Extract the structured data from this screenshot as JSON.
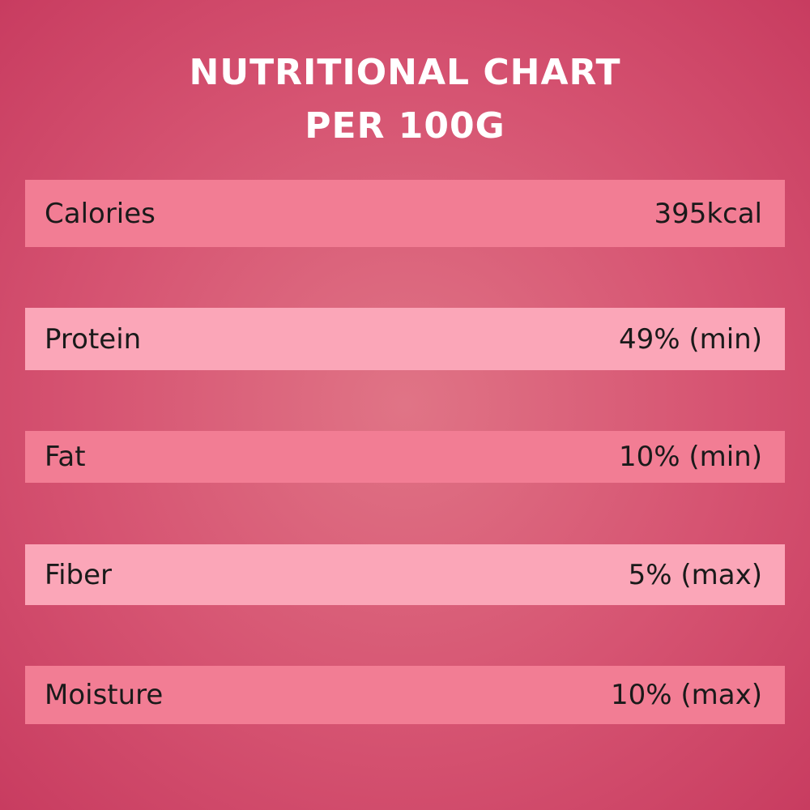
{
  "header": {
    "title_line1": "NUTRITIONAL CHART",
    "title_line2": "PER 100G"
  },
  "table": {
    "rows": [
      [
        "Calories",
        "395kcal"
      ],
      [
        "Protein",
        "49% (min)"
      ],
      [
        "Fat",
        "10% (min)"
      ],
      [
        "Fiber",
        "5% (max)"
      ],
      [
        "Moisture",
        "10% (max)"
      ]
    ]
  }
}
